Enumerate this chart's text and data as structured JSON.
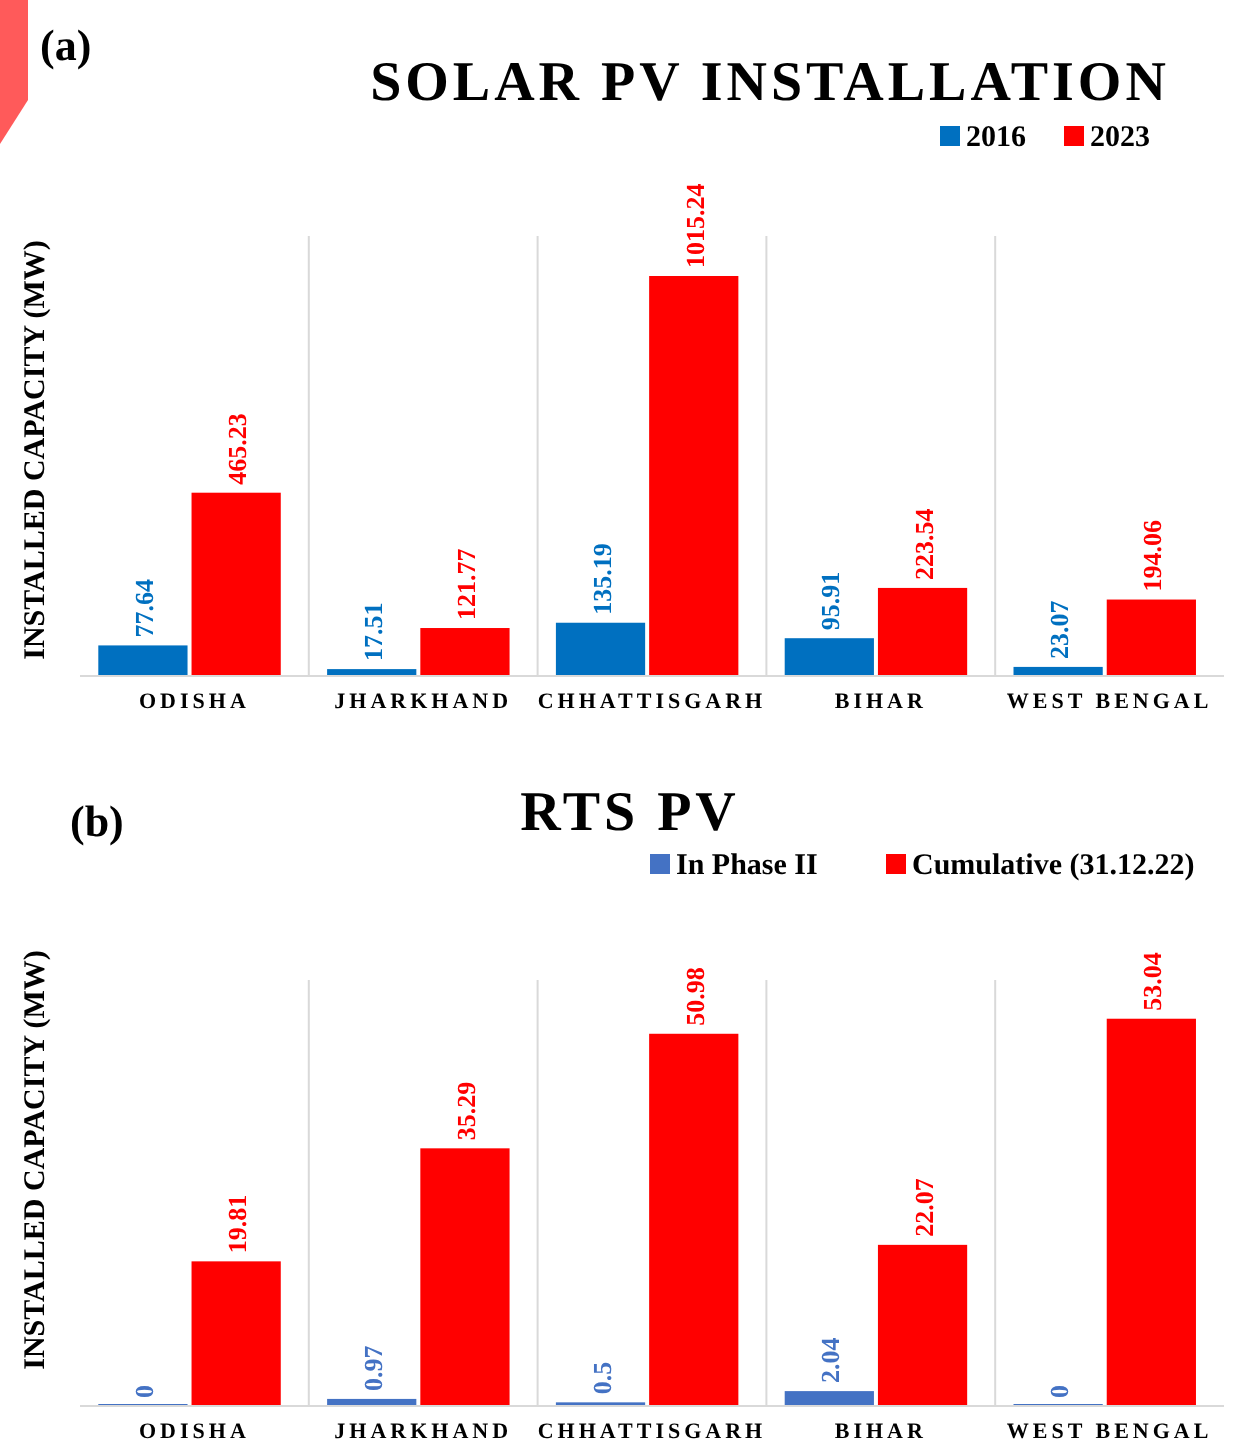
{
  "chart_data": [
    {
      "type": "bar",
      "title": "SOLAR PV INSTALLATION",
      "subtitle": "(a)",
      "ylabel": "INSTALLED CAPACITY (MW)",
      "categories": [
        "ODISHA",
        "JHARKHAND",
        "CHHATTISGARH",
        "BIHAR",
        "WEST BENGAL"
      ],
      "series": [
        {
          "name": "2016",
          "color": "#0070c0",
          "values": [
            77.64,
            17.51,
            135.19,
            95.91,
            23.07
          ]
        },
        {
          "name": "2023",
          "color": "#ff0000",
          "values": [
            465.23,
            121.77,
            1015.24,
            223.54,
            194.06
          ]
        }
      ],
      "data_labels": true,
      "legend": "top right"
    },
    {
      "type": "bar",
      "title": "RTS PV",
      "subtitle": "(b)",
      "ylabel": "INSTALLED CAPACITY (MW)",
      "categories": [
        "ODISHA",
        "JHARKHAND",
        "CHHATTISGARH",
        "BIHAR",
        "WEST BENGAL"
      ],
      "series": [
        {
          "name": "In Phase II",
          "color": "#4472c4",
          "values": [
            0,
            0.97,
            0.5,
            2.04,
            0
          ]
        },
        {
          "name": "Cumulative (31.12.22)",
          "color": "#ff0000",
          "values": [
            19.81,
            35.29,
            50.98,
            22.07,
            53.04
          ]
        }
      ],
      "data_labels": true,
      "legend": "top right"
    }
  ]
}
